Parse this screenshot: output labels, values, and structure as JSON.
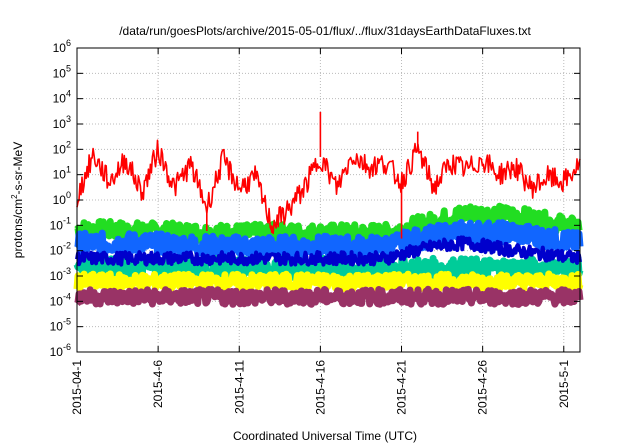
{
  "chart_data": {
    "type": "line",
    "title": "/data/run/goesPlots/archive/2015-05-01/flux/../flux/31daysEarthDataFluxes.txt",
    "xlabel": "Coordinated Universal Time (UTC)",
    "ylabel": {
      "prefix": "protons/cm",
      "superscript": "2",
      "suffix": "-s-sr-MeV"
    },
    "yscale": "log",
    "ylim_exponents": [
      -6,
      6
    ],
    "y_ticks": [
      {
        "base": "10",
        "exp": "6"
      },
      {
        "base": "10",
        "exp": "5"
      },
      {
        "base": "10",
        "exp": "4"
      },
      {
        "base": "10",
        "exp": "3"
      },
      {
        "base": "10",
        "exp": "2"
      },
      {
        "base": "10",
        "exp": "1"
      },
      {
        "base": "10",
        "exp": "0"
      },
      {
        "base": "10",
        "exp": "-1"
      },
      {
        "base": "10",
        "exp": "-2"
      },
      {
        "base": "10",
        "exp": "-3"
      },
      {
        "base": "10",
        "exp": "-4"
      },
      {
        "base": "10",
        "exp": "-5"
      },
      {
        "base": "10",
        "exp": "-6"
      }
    ],
    "xlim": [
      "2015-04-01",
      "2015-05-02"
    ],
    "x_ticks": [
      "2015-04-1",
      "2015-4-6",
      "2015-4-11",
      "2015-4-16",
      "2015-4-21",
      "2015-4-26",
      "2015-5-1"
    ],
    "x_tick_dates": [
      "2015-04-01",
      "2015-04-06",
      "2015-04-11",
      "2015-04-16",
      "2015-04-21",
      "2015-04-26",
      "2015-05-01"
    ],
    "grid": true,
    "series": [
      {
        "color": "#ff0000",
        "points": [
          [
            "2015-04-01",
            1.2
          ],
          [
            "2015-04-02",
            60
          ],
          [
            "2015-04-03",
            5
          ],
          [
            "2015-04-04",
            40
          ],
          [
            "2015-04-05",
            2
          ],
          [
            "2015-04-06",
            100
          ],
          [
            "2015-04-07",
            3
          ],
          [
            "2015-04-08",
            25
          ],
          [
            "2015-04-09",
            0.5
          ],
          [
            "2015-04-10",
            40
          ],
          [
            "2015-04-11",
            3
          ],
          [
            "2015-04-12",
            8
          ],
          [
            "2015-04-13",
            0.1
          ],
          [
            "2015-04-14",
            0.4
          ],
          [
            "2015-04-15",
            3
          ],
          [
            "2015-04-16",
            50
          ],
          [
            "2015-04-17",
            3
          ],
          [
            "2015-04-18",
            60
          ],
          [
            "2015-04-19",
            20
          ],
          [
            "2015-04-20",
            30
          ],
          [
            "2015-04-21",
            5
          ],
          [
            "2015-04-22",
            100
          ],
          [
            "2015-04-23",
            3
          ],
          [
            "2015-04-24",
            30
          ],
          [
            "2015-04-25",
            15
          ],
          [
            "2015-04-26",
            40
          ],
          [
            "2015-04-27",
            10
          ],
          [
            "2015-04-28",
            20
          ],
          [
            "2015-04-29",
            3
          ],
          [
            "2015-04-30",
            8
          ],
          [
            "2015-05-01",
            5
          ],
          [
            "2015-05-02",
            25
          ]
        ],
        "spikes": [
          [
            "2015-04-13",
            0.05
          ],
          [
            "2015-04-16",
            3000
          ],
          [
            "2015-04-21",
            0.03
          ],
          [
            "2015-04-22",
            500
          ],
          [
            "2015-04-09",
            0.06
          ]
        ]
      },
      {
        "color": "#22dd22",
        "points": [
          [
            "2015-04-01",
            0.07
          ],
          [
            "2015-04-05",
            0.06
          ],
          [
            "2015-04-10",
            0.05
          ],
          [
            "2015-04-15",
            0.05
          ],
          [
            "2015-04-20",
            0.05
          ],
          [
            "2015-04-22",
            0.1
          ],
          [
            "2015-04-25",
            0.3
          ],
          [
            "2015-04-28",
            0.25
          ],
          [
            "2015-05-02",
            0.08
          ]
        ]
      },
      {
        "color": "#1166ff",
        "points": [
          [
            "2015-04-01",
            0.02
          ],
          [
            "2015-04-05",
            0.02
          ],
          [
            "2015-04-10",
            0.015
          ],
          [
            "2015-04-15",
            0.015
          ],
          [
            "2015-04-20",
            0.015
          ],
          [
            "2015-04-22",
            0.03
          ],
          [
            "2015-04-25",
            0.06
          ],
          [
            "2015-04-28",
            0.05
          ],
          [
            "2015-05-02",
            0.02
          ]
        ]
      },
      {
        "color": "#0000cc",
        "points": [
          [
            "2015-04-01",
            0.005
          ],
          [
            "2015-04-05",
            0.005
          ],
          [
            "2015-04-10",
            0.005
          ],
          [
            "2015-04-15",
            0.005
          ],
          [
            "2015-04-20",
            0.005
          ],
          [
            "2015-04-23",
            0.015
          ],
          [
            "2015-04-25",
            0.02
          ],
          [
            "2015-04-28",
            0.01
          ],
          [
            "2015-05-02",
            0.005
          ]
        ]
      },
      {
        "color": "#00cc99",
        "points": [
          [
            "2015-04-01",
            0.002
          ],
          [
            "2015-04-10",
            0.002
          ],
          [
            "2015-04-20",
            0.002
          ],
          [
            "2015-05-02",
            0.002
          ]
        ]
      },
      {
        "color": "#ffff00",
        "points": [
          [
            "2015-04-01",
            0.0006
          ],
          [
            "2015-04-10",
            0.0006
          ],
          [
            "2015-04-20",
            0.0006
          ],
          [
            "2015-05-02",
            0.0006
          ]
        ]
      },
      {
        "color": "#993366",
        "points": [
          [
            "2015-04-01",
            0.00015
          ],
          [
            "2015-04-10",
            0.00015
          ],
          [
            "2015-04-20",
            0.00015
          ],
          [
            "2015-05-02",
            0.00015
          ]
        ]
      }
    ],
    "colors": {
      "grid": "#bbbbbb",
      "axis": "#000000"
    }
  }
}
